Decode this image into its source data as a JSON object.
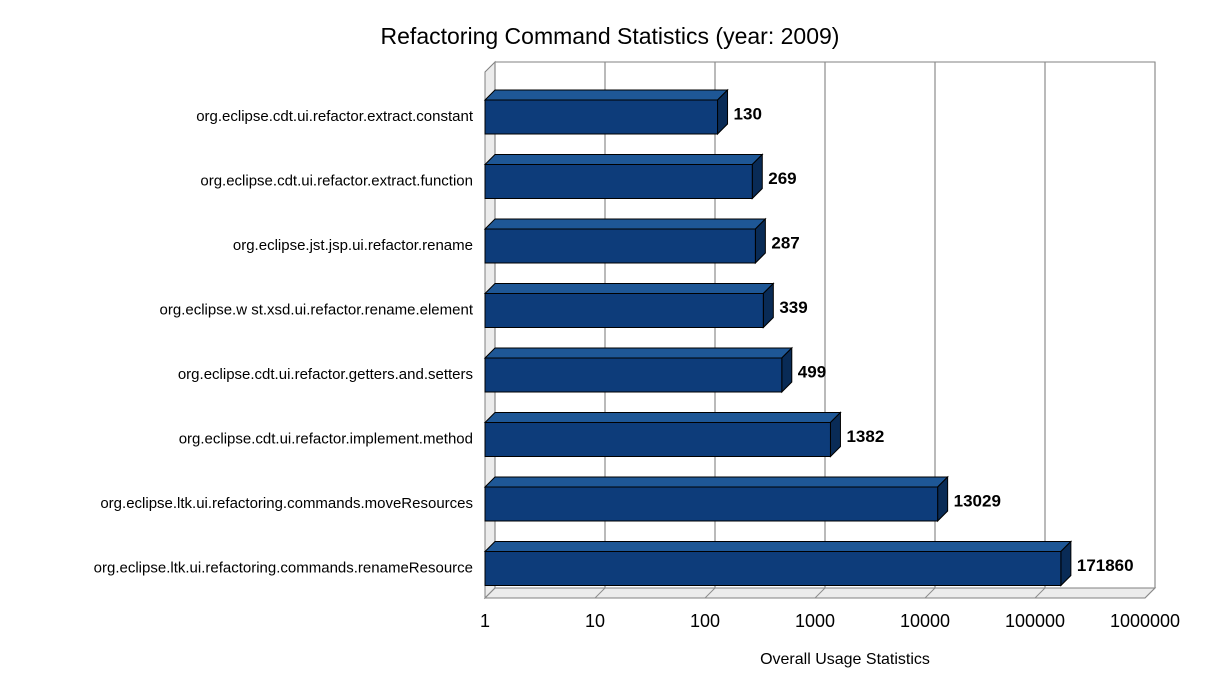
{
  "chart_data": {
    "type": "bar",
    "orientation": "horizontal",
    "x_scale": "log",
    "title": "Refactoring Command Statistics (year: 2009)",
    "xlabel": "Overall Usage Statistics",
    "xlim": [
      1,
      1000000
    ],
    "x_tick_labels": [
      "1",
      "10",
      "100",
      "1000",
      "10000",
      "100000",
      "1000000"
    ],
    "categories": [
      "org.eclipse.cdt.ui.refactor.extract.constant",
      "org.eclipse.cdt.ui.refactor.extract.function",
      "org.eclipse.jst.jsp.ui.refactor.rename",
      "org.eclipse.w st.xsd.ui.refactor.rename.element",
      "org.eclipse.cdt.ui.refactor.getters.and.setters",
      "org.eclipse.cdt.ui.refactor.implement.method",
      "org.eclipse.ltk.ui.refactoring.commands.moveResources",
      "org.eclipse.ltk.ui.refactoring.commands.renameResource"
    ],
    "values": [
      130,
      269,
      287,
      339,
      499,
      1382,
      13029,
      171860
    ],
    "value_labels": [
      "130",
      "269",
      "287",
      "339",
      "499",
      "1382",
      "13029",
      "171860"
    ],
    "legend": "none",
    "grid": "vertical",
    "colors": {
      "bar_front": "#0d3c7a",
      "bar_top": "#1e5796",
      "bar_side": "#092b56",
      "bar_outline": "#000000",
      "gridline": "#8c8c8c",
      "frame": "#808080",
      "wall_fill": "#ffffff",
      "side_fill": "#ececec",
      "text": "#000000",
      "background": "#ffffff"
    }
  }
}
